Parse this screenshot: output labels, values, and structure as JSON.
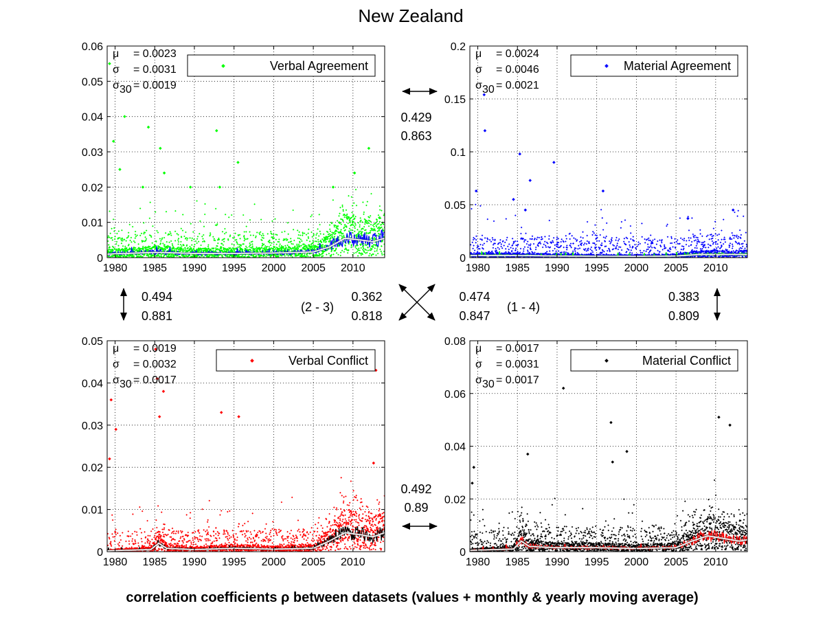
{
  "figure": {
    "title": "New Zealand",
    "footer": "correlation coefficients ρ between datasets (values + monthly & yearly moving average)"
  },
  "chart_data": [
    {
      "type": "scatter",
      "key": "verbal_agreement",
      "legend": "Verbal Agreement",
      "color": "#00ff00",
      "avg_color": "#0000ff",
      "ylim": [
        0,
        0.06
      ],
      "xlim": [
        1979,
        2014
      ],
      "xticks": [
        1980,
        1985,
        1990,
        1995,
        2000,
        2005,
        2010
      ],
      "yticks": [
        0,
        0.01,
        0.02,
        0.03,
        0.04,
        0.05,
        0.06
      ],
      "ytick_labels": [
        "0",
        "0.01",
        "0.02",
        "0.03",
        "0.04",
        "0.05",
        "0.06"
      ],
      "stats": {
        "mu": "= 0.0023",
        "sigma": "= 0.0031",
        "sigma30": "= 0.0019"
      },
      "grid": true,
      "legend_position": "top-right",
      "sample_points": [
        [
          1979.3,
          0.055
        ],
        [
          1979.8,
          0.033
        ],
        [
          1980.6,
          0.025
        ],
        [
          1981.2,
          0.04
        ],
        [
          1983.5,
          0.02
        ],
        [
          1984.2,
          0.037
        ],
        [
          1985.7,
          0.031
        ],
        [
          1986.2,
          0.024
        ],
        [
          1989.5,
          0.02
        ],
        [
          1992.8,
          0.036
        ],
        [
          1993.2,
          0.02
        ],
        [
          1995.5,
          0.027
        ],
        [
          2007.5,
          0.02
        ],
        [
          2010.2,
          0.024
        ],
        [
          2012.0,
          0.031
        ]
      ],
      "moving_average": [
        [
          1979,
          0.001
        ],
        [
          1985,
          0.0015
        ],
        [
          1990,
          0.0012
        ],
        [
          1995,
          0.0012
        ],
        [
          2000,
          0.0013
        ],
        [
          2005,
          0.0016
        ],
        [
          2007,
          0.003
        ],
        [
          2009,
          0.0055
        ],
        [
          2011,
          0.005
        ],
        [
          2012.5,
          0.0045
        ],
        [
          2014,
          0.0055
        ]
      ]
    },
    {
      "type": "scatter",
      "key": "material_agreement",
      "legend": "Material Agreement",
      "color": "#0000ff",
      "avg_color": "#00ff00",
      "ylim": [
        0,
        0.2
      ],
      "xlim": [
        1979,
        2014
      ],
      "xticks": [
        1980,
        1985,
        1990,
        1995,
        2000,
        2005,
        2010
      ],
      "yticks": [
        0,
        0.05,
        0.1,
        0.15,
        0.2
      ],
      "ytick_labels": [
        "0",
        "0.05",
        "0.1",
        "0.15",
        "0.2"
      ],
      "stats": {
        "mu": "= 0.0024",
        "sigma": "= 0.0046",
        "sigma30": "= 0.0021"
      },
      "grid": true,
      "legend_position": "top-right",
      "sample_points": [
        [
          1980.8,
          0.154
        ],
        [
          1980.9,
          0.12
        ],
        [
          1979.8,
          0.063
        ],
        [
          1985.3,
          0.098
        ],
        [
          1986.6,
          0.073
        ],
        [
          1989.6,
          0.09
        ],
        [
          1995.8,
          0.063
        ],
        [
          1984.5,
          0.055
        ],
        [
          1986.0,
          0.045
        ],
        [
          2006.5,
          0.037
        ],
        [
          2012.2,
          0.045
        ]
      ],
      "moving_average": [
        [
          1979,
          0.002
        ],
        [
          1985,
          0.002
        ],
        [
          1990,
          0.0015
        ],
        [
          2000,
          0.0012
        ],
        [
          2005,
          0.0015
        ],
        [
          2008,
          0.003
        ],
        [
          2011,
          0.003
        ],
        [
          2014,
          0.003
        ]
      ]
    },
    {
      "type": "scatter",
      "key": "verbal_conflict",
      "legend": "Verbal Conflict",
      "color": "#ff0000",
      "avg_color": "#000000",
      "ylim": [
        0,
        0.05
      ],
      "xlim": [
        1979,
        2014
      ],
      "xticks": [
        1980,
        1985,
        1990,
        1995,
        2000,
        2005,
        2010
      ],
      "yticks": [
        0,
        0.01,
        0.02,
        0.03,
        0.04,
        0.05
      ],
      "ytick_labels": [
        "0",
        "0.01",
        "0.02",
        "0.03",
        "0.04",
        "0.05"
      ],
      "stats": {
        "mu": "= 0.0019",
        "sigma": "= 0.0032",
        "sigma30": "= 0.0017"
      },
      "grid": true,
      "legend_position": "top-right",
      "sample_points": [
        [
          1979.5,
          0.036
        ],
        [
          1980.1,
          0.029
        ],
        [
          1985.1,
          0.048
        ],
        [
          1985.6,
          0.032
        ],
        [
          1986.1,
          0.038
        ],
        [
          1985.3,
          0.041
        ],
        [
          1993.4,
          0.033
        ],
        [
          1995.6,
          0.032
        ],
        [
          2012.9,
          0.043
        ],
        [
          2012.6,
          0.021
        ],
        [
          1979.3,
          0.022
        ]
      ],
      "moving_average": [
        [
          1979,
          0.0002
        ],
        [
          1984.5,
          0.0005
        ],
        [
          1985.5,
          0.002
        ],
        [
          1986.5,
          0.0008
        ],
        [
          1990,
          0.0005
        ],
        [
          1995,
          0.0008
        ],
        [
          2000,
          0.0006
        ],
        [
          2005,
          0.0008
        ],
        [
          2007,
          0.0025
        ],
        [
          2009,
          0.0045
        ],
        [
          2011,
          0.004
        ],
        [
          2012.5,
          0.0035
        ],
        [
          2014,
          0.0045
        ]
      ]
    },
    {
      "type": "scatter",
      "key": "material_conflict",
      "legend": "Material Conflict",
      "color": "#000000",
      "avg_color": "#ff0000",
      "ylim": [
        0,
        0.08
      ],
      "xlim": [
        1979,
        2014
      ],
      "xticks": [
        1980,
        1985,
        1990,
        1995,
        2000,
        2005,
        2010
      ],
      "yticks": [
        0,
        0.02,
        0.04,
        0.06,
        0.08
      ],
      "ytick_labels": [
        "0",
        "0.02",
        "0.04",
        "0.06",
        "0.08"
      ],
      "stats": {
        "mu": "= 0.0017",
        "sigma": "= 0.0031",
        "sigma30": "= 0.0017"
      },
      "grid": true,
      "legend_position": "top-right",
      "sample_points": [
        [
          1990.8,
          0.062
        ],
        [
          1996.8,
          0.049
        ],
        [
          1998.8,
          0.038
        ],
        [
          1997.0,
          0.034
        ],
        [
          2010.4,
          0.051
        ],
        [
          2011.8,
          0.048
        ],
        [
          1986.3,
          0.037
        ],
        [
          1979.5,
          0.032
        ],
        [
          1979.3,
          0.026
        ]
      ],
      "moving_average": [
        [
          1979,
          0.0005
        ],
        [
          1984.5,
          0.001
        ],
        [
          1985.5,
          0.004
        ],
        [
          1986.5,
          0.002
        ],
        [
          1990,
          0.0015
        ],
        [
          1995,
          0.0015
        ],
        [
          2000,
          0.0012
        ],
        [
          2005,
          0.0015
        ],
        [
          2007,
          0.004
        ],
        [
          2009,
          0.006
        ],
        [
          2011,
          0.005
        ],
        [
          2013,
          0.004
        ],
        [
          2014,
          0.0045
        ]
      ]
    }
  ],
  "correlations": {
    "top": {
      "values": [
        "0.429",
        "0.863"
      ]
    },
    "left": {
      "values": [
        "0.494",
        "0.881"
      ]
    },
    "right": {
      "values": [
        "0.383",
        "0.809"
      ]
    },
    "bottom": {
      "values": [
        "0.492",
        "0.89"
      ]
    },
    "diag_2_3": {
      "label": "(2 - 3)",
      "values": [
        "0.362",
        "0.818"
      ]
    },
    "diag_1_4": {
      "label": "(1 - 4)",
      "values": [
        "0.474",
        "0.847"
      ]
    }
  }
}
